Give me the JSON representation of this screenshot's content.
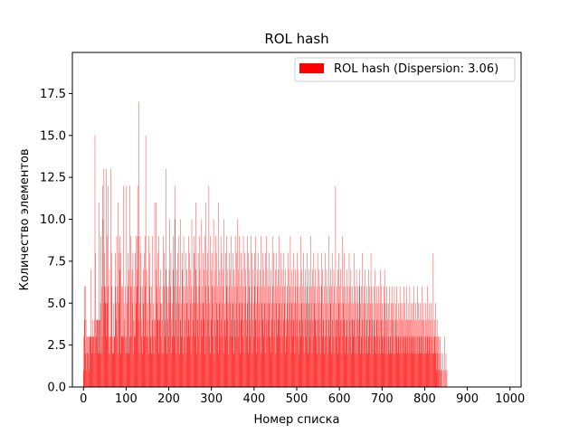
{
  "chart_data": {
    "type": "bar",
    "title": "ROL hash",
    "xlabel": "Номер списка",
    "ylabel": "Количество элементов",
    "xlim": [
      -26,
      1026
    ],
    "ylim": [
      0,
      19.95
    ],
    "xticks": [
      0,
      100,
      200,
      300,
      400,
      500,
      600,
      700,
      800,
      900,
      1000
    ],
    "yticks": [
      0.0,
      2.5,
      5.0,
      7.5,
      10.0,
      12.5,
      15.0,
      17.5
    ],
    "ytick_labels": [
      "0.0",
      "2.5",
      "5.0",
      "7.5",
      "10.0",
      "12.5",
      "15.0",
      "17.5"
    ],
    "bar_color": "#ff0000",
    "legend": {
      "position": "top-right",
      "entries": [
        "ROL hash (Dispersion: 3.06)"
      ]
    },
    "grid": false,
    "note_values": "Approximate per-bin counts read from bar heights; bins are consecutive starting at x=0.",
    "values": [
      1,
      3,
      6,
      4,
      2,
      6,
      4,
      1,
      3,
      2,
      3,
      3,
      2,
      3,
      1,
      3,
      3,
      3,
      7,
      2,
      3,
      4,
      3,
      3,
      3,
      2,
      4,
      15,
      8,
      3,
      4,
      3,
      4,
      4,
      4,
      2,
      4,
      11,
      4,
      2,
      5,
      9,
      2,
      6,
      3,
      12,
      10,
      5,
      13,
      6,
      8,
      5,
      6,
      13,
      3,
      5,
      9,
      6,
      12,
      2,
      3,
      7,
      2,
      3,
      13,
      3,
      8,
      6,
      2,
      3,
      5,
      2,
      3,
      3,
      6,
      8,
      5,
      4,
      9,
      3,
      6,
      11,
      2,
      5,
      8,
      9,
      7,
      2,
      8,
      6,
      3,
      3,
      6,
      3,
      12,
      5,
      4,
      3,
      6,
      2,
      3,
      12,
      2,
      5,
      8,
      6,
      7,
      2,
      3,
      12,
      6,
      9,
      3,
      6,
      7,
      5,
      8,
      2,
      4,
      3,
      6,
      8,
      3,
      9,
      5,
      7,
      6,
      12,
      9,
      4,
      17,
      2,
      5,
      9,
      6,
      8,
      4,
      3,
      6,
      2,
      7,
      5,
      3,
      8,
      9,
      6,
      15,
      3,
      7,
      3,
      5,
      4,
      3,
      9,
      2,
      6,
      8,
      5,
      3,
      2,
      6,
      9,
      4,
      3,
      5,
      2,
      4,
      11,
      4,
      3,
      11,
      7,
      5,
      6,
      8,
      4,
      9,
      2,
      6,
      4,
      5,
      7,
      3,
      5,
      2,
      4,
      6,
      9,
      2,
      8,
      6,
      4,
      3,
      13,
      7,
      2,
      6,
      4,
      5,
      6,
      3,
      7,
      10,
      5,
      6,
      8,
      4,
      2,
      3,
      5,
      7,
      9,
      3,
      6,
      12,
      10,
      4,
      2,
      5,
      7,
      6,
      8,
      3,
      5,
      9,
      2,
      6,
      4,
      10,
      3,
      5,
      8,
      7,
      2,
      6,
      9,
      3,
      5,
      4,
      6,
      8,
      2,
      7,
      5,
      3,
      6,
      9,
      4,
      3,
      8,
      5,
      7,
      2,
      6,
      10,
      3,
      5,
      4,
      6,
      8,
      9,
      3,
      5,
      7,
      11,
      2,
      6,
      4,
      5,
      8,
      3,
      6,
      9,
      7,
      2,
      5,
      4,
      10,
      6,
      3,
      8,
      5,
      7,
      4,
      9,
      2,
      6,
      11,
      3,
      5,
      7,
      8,
      4,
      6,
      12,
      3,
      5,
      9,
      2,
      7,
      4,
      6,
      8,
      3,
      5,
      10,
      2,
      6,
      4,
      7,
      9,
      3,
      5,
      8,
      6,
      4,
      11,
      2,
      7,
      5,
      3,
      6,
      9,
      4,
      8,
      5,
      3,
      7,
      6,
      10,
      2,
      4,
      5,
      8,
      3,
      6,
      9,
      7,
      4,
      5,
      2,
      6,
      8,
      3,
      7,
      5,
      9,
      4,
      6,
      3,
      8,
      5,
      2,
      7,
      6,
      4,
      9,
      3,
      5,
      8,
      6,
      10,
      4,
      7,
      3,
      5,
      9,
      2,
      6,
      8,
      4,
      5,
      7,
      3,
      6,
      9,
      4,
      2,
      8,
      5,
      7,
      6,
      3,
      4,
      9,
      5,
      8,
      2,
      6,
      7,
      4,
      3,
      5,
      9,
      6,
      8,
      2,
      4,
      7,
      5,
      3,
      6,
      8,
      4,
      9,
      5,
      2,
      7,
      6,
      3,
      8,
      4,
      5,
      6,
      7,
      3,
      9,
      2,
      5,
      6,
      4,
      8,
      7,
      3,
      5,
      6,
      2,
      8,
      4,
      9,
      5,
      3,
      7,
      6,
      4,
      5,
      8,
      3,
      6,
      2,
      7,
      5,
      4,
      9,
      6,
      3,
      8,
      5,
      4,
      6,
      7,
      2,
      5,
      8,
      3,
      6,
      4,
      7,
      5,
      9,
      3,
      6,
      4,
      8,
      2,
      5,
      7,
      6,
      3,
      4,
      8,
      5,
      6,
      2,
      7,
      4,
      3,
      6,
      5,
      8,
      4,
      7,
      3,
      5,
      6,
      9,
      2,
      4,
      7,
      5,
      3,
      6,
      8,
      4,
      5,
      2,
      6,
      7,
      3,
      5,
      4,
      8,
      6,
      3,
      7,
      5,
      2,
      6,
      4,
      9,
      3,
      5,
      7,
      6,
      4,
      3,
      8,
      5,
      2,
      6,
      7,
      4,
      5,
      3,
      6,
      8,
      4,
      2,
      7,
      5,
      6,
      3,
      4,
      9,
      5,
      6,
      2,
      7,
      4,
      3,
      8,
      5,
      6,
      4,
      7,
      3,
      5,
      2,
      6,
      8,
      4,
      5,
      7,
      3,
      6,
      4,
      2,
      5,
      8,
      6,
      3,
      7,
      4,
      5,
      6,
      2,
      3,
      8,
      5,
      4,
      7,
      6,
      3,
      2,
      5,
      9,
      4,
      6,
      3,
      7,
      5,
      2,
      6,
      8,
      4,
      3,
      5,
      7,
      6,
      2,
      4,
      12,
      5,
      3,
      6,
      4,
      7,
      2,
      5,
      8,
      3,
      6,
      4,
      7,
      5,
      2,
      4,
      9,
      3,
      6,
      5,
      4,
      8,
      2,
      6,
      3,
      5,
      7,
      4,
      6,
      2,
      3,
      5,
      8,
      4,
      6,
      3,
      7,
      5,
      2,
      4,
      6,
      3,
      5,
      4,
      8,
      2,
      6,
      5,
      3,
      7,
      4,
      2,
      6,
      5,
      3,
      4,
      7,
      6,
      2,
      5,
      3,
      6,
      4,
      8,
      2,
      5,
      3,
      6,
      4,
      7,
      5,
      2,
      3,
      6,
      4,
      5,
      2,
      7,
      3,
      6,
      4,
      5,
      2,
      8,
      3,
      6,
      4,
      5,
      3,
      2,
      6,
      4,
      7,
      3,
      5,
      2,
      4,
      6,
      3,
      5,
      2,
      6,
      4,
      3,
      5,
      7,
      2,
      4,
      6,
      3,
      5,
      2,
      4,
      6,
      3,
      7,
      5,
      2,
      4,
      3,
      6,
      5,
      2,
      4,
      3,
      5,
      6,
      2,
      4,
      3,
      5,
      2,
      6,
      4,
      3,
      5,
      2,
      4,
      6,
      3,
      2,
      5,
      4,
      3,
      6,
      2,
      4,
      5,
      3,
      2,
      4,
      6,
      3,
      5,
      2,
      4,
      3,
      5,
      2,
      4,
      6,
      3,
      2,
      5,
      4,
      3,
      6,
      2,
      4,
      3,
      5,
      2,
      4,
      3,
      6,
      2,
      4,
      5,
      3,
      2,
      4,
      3,
      5,
      2,
      6,
      3,
      4,
      2,
      5,
      3,
      4,
      2,
      6,
      3,
      5,
      2,
      4,
      3,
      2,
      5,
      4,
      3,
      2,
      6,
      4,
      3,
      5,
      2,
      4,
      3,
      2,
      5,
      3,
      4,
      2,
      6,
      3,
      2,
      4,
      5,
      3,
      2,
      4,
      3,
      5,
      2,
      3,
      4,
      2,
      8,
      3,
      2,
      4,
      3,
      2,
      5,
      3,
      1,
      4,
      2,
      3,
      1,
      3,
      2,
      1,
      3,
      0,
      2,
      1,
      0,
      1,
      0,
      2,
      0,
      1,
      0,
      3,
      1,
      0,
      2,
      0,
      1
    ]
  }
}
